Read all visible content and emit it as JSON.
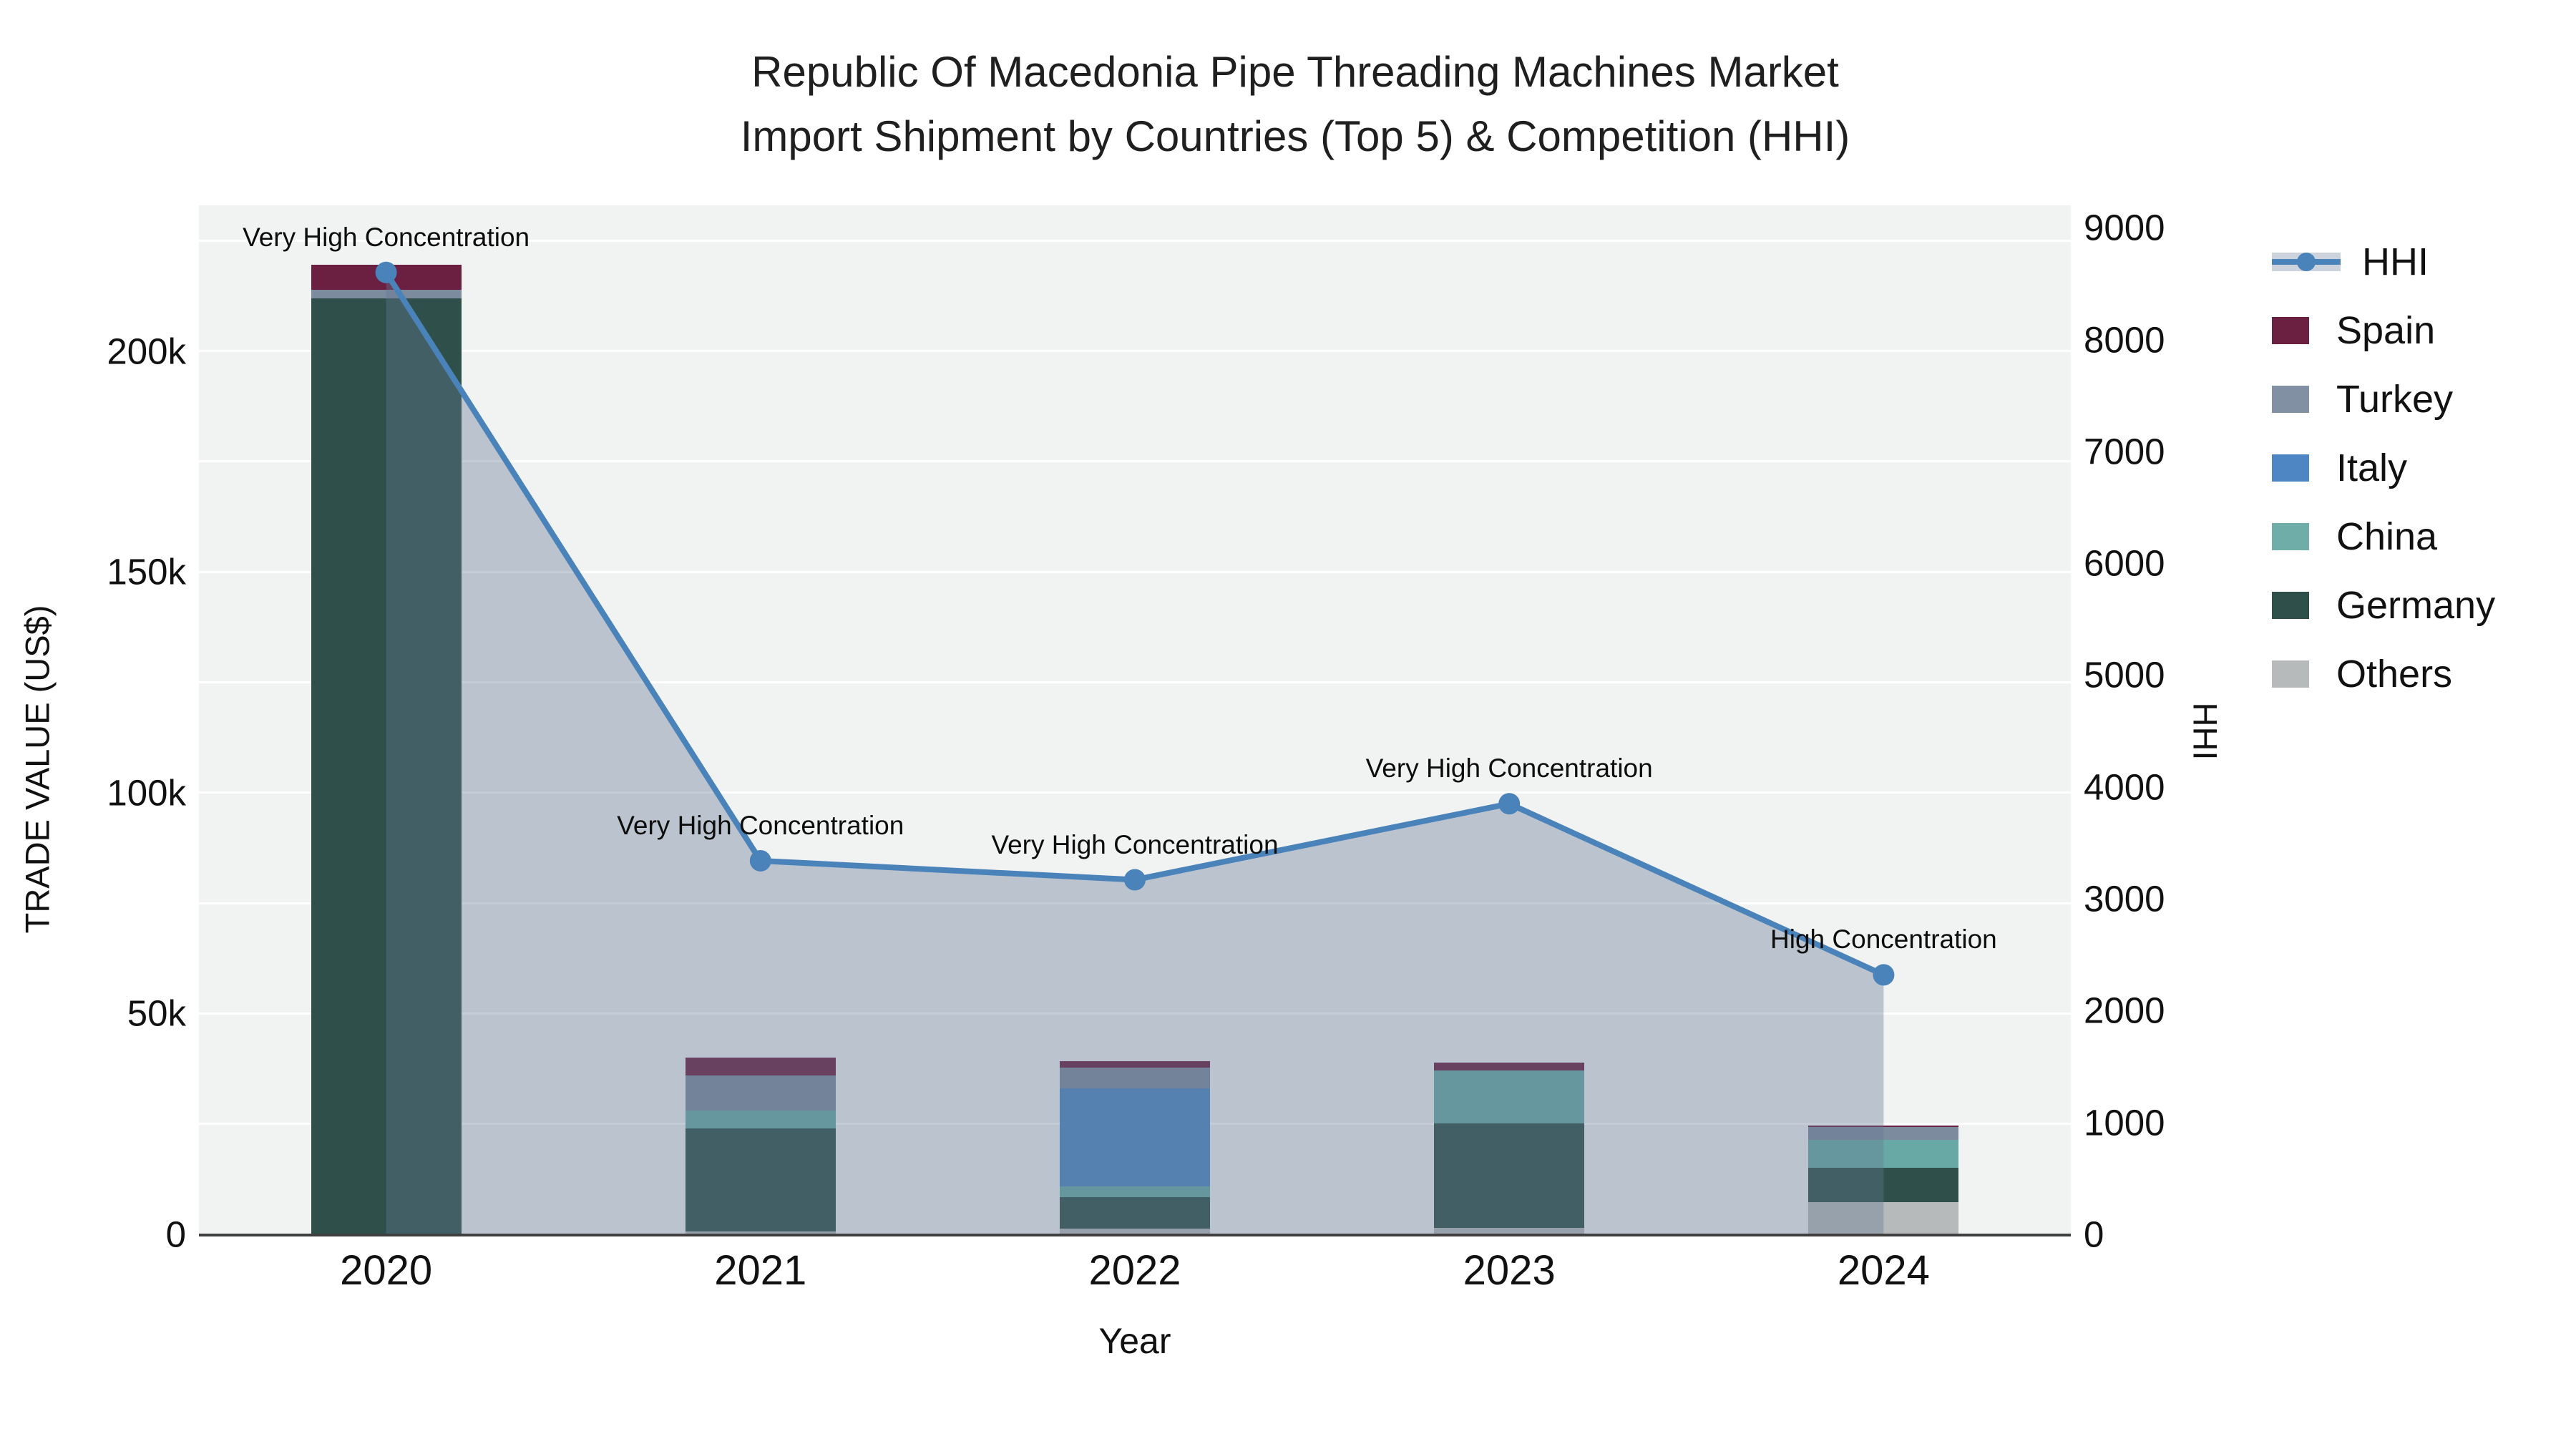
{
  "title": {
    "line1": "Republic Of Macedonia Pipe Threading Machines Market",
    "line2": "Import Shipment by Countries (Top 5) & Competition (HHI)"
  },
  "axes": {
    "y_left": {
      "title": "TRADE VALUE (US$)",
      "tick_labels": [
        "0",
        "50k",
        "100k",
        "150k",
        "200k"
      ],
      "tick_step": 50000,
      "grid_step": 25000,
      "range": [
        0,
        233000
      ]
    },
    "y_right": {
      "title": "HHI",
      "tick_step": 1000,
      "tick_max": 9000,
      "range": [
        0,
        9200
      ]
    },
    "x": {
      "title": "Year"
    }
  },
  "chart_data": {
    "type": "combo",
    "categories": [
      "2020",
      "2021",
      "2022",
      "2023",
      "2024"
    ],
    "bar_stack_order": [
      "Others",
      "Germany",
      "China",
      "Italy",
      "Turkey",
      "Spain"
    ],
    "series": [
      {
        "name": "Others",
        "color": "#b7baba",
        "values": [
          0,
          600,
          1300,
          1500,
          7300
        ]
      },
      {
        "name": "Germany",
        "color": "#2f4f4b",
        "values": [
          212000,
          23300,
          7100,
          23600,
          7800
        ]
      },
      {
        "name": "China",
        "color": "#68a9a5",
        "values": [
          0,
          4200,
          2500,
          12000,
          6300
        ]
      },
      {
        "name": "Italy",
        "color": "#4d86c2",
        "values": [
          0,
          0,
          22200,
          0,
          0
        ]
      },
      {
        "name": "Turkey",
        "color": "#7d8b9e",
        "values": [
          1800,
          7800,
          4700,
          0,
          2900
        ]
      },
      {
        "name": "Spain",
        "color": "#6b1f41",
        "values": [
          5800,
          4100,
          1400,
          1800,
          300
        ]
      }
    ],
    "hhi": {
      "name": "HHI",
      "color": "#4a83ba",
      "area_fill": "rgba(100,122,148,0.38)",
      "values": [
        8600,
        3340,
        3170,
        3850,
        2320
      ]
    },
    "annotations": [
      {
        "category": "2020",
        "text": "Very High Concentration"
      },
      {
        "category": "2021",
        "text": "Very High Concentration"
      },
      {
        "category": "2022",
        "text": "Very High Concentration"
      },
      {
        "category": "2023",
        "text": "Very High Concentration"
      },
      {
        "category": "2024",
        "text": "High Concentration"
      }
    ],
    "legend": [
      {
        "label": "HHI",
        "type": "line",
        "color": "#4a83ba"
      },
      {
        "label": "Spain",
        "type": "patch",
        "color": "#6b1f41"
      },
      {
        "label": "Turkey",
        "type": "patch",
        "color": "#8191a3"
      },
      {
        "label": "Italy",
        "type": "patch",
        "color": "#4d86c2"
      },
      {
        "label": "China",
        "type": "patch",
        "color": "#6fada9"
      },
      {
        "label": "Germany",
        "type": "patch",
        "color": "#2f4f4b"
      },
      {
        "label": "Others",
        "type": "patch",
        "color": "#b7baba"
      }
    ]
  }
}
